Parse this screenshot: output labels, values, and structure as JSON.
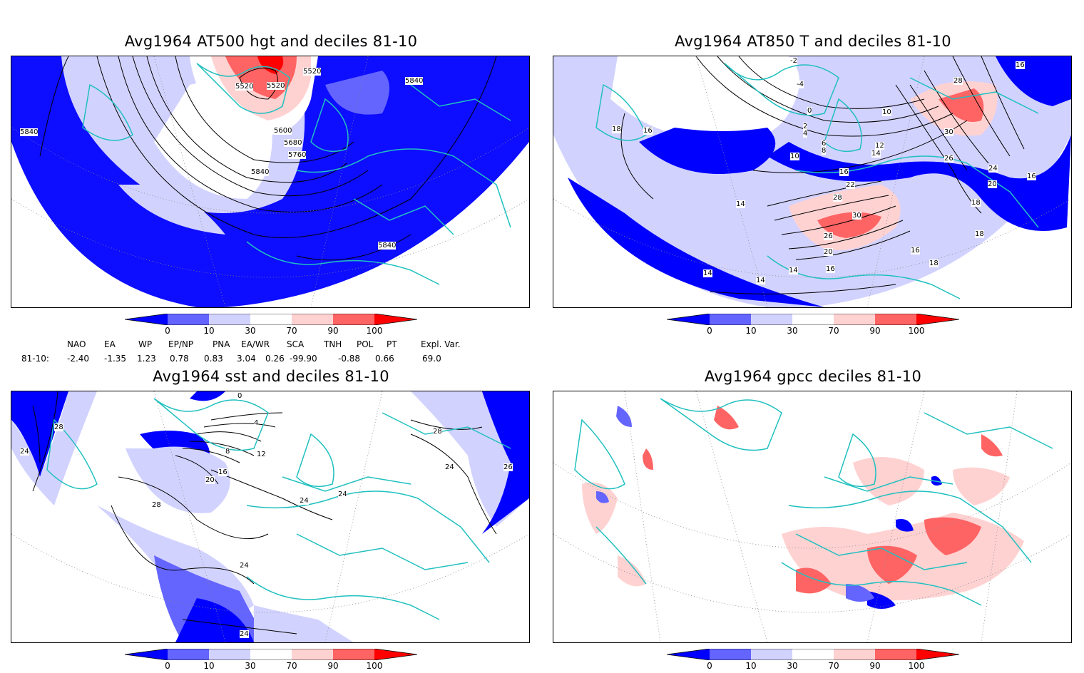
{
  "panels": [
    {
      "title": "Avg1964 AT500 hgt and deciles 81-10",
      "contour_labels": [
        "5520",
        "5520",
        "5520",
        "5600",
        "5680",
        "5760",
        "5840",
        "5840",
        "5840",
        "5840"
      ]
    },
    {
      "title": "Avg1964 AT850 T and deciles 81-10",
      "contour_labels": [
        "-2",
        "-4",
        "0",
        "2",
        "4",
        "6",
        "8",
        "10",
        "10",
        "12",
        "14",
        "14",
        "14",
        "14",
        "14",
        "16",
        "16",
        "16",
        "16",
        "16",
        "16",
        "18",
        "18",
        "18",
        "18",
        "20",
        "20",
        "22",
        "24",
        "26",
        "26",
        "28",
        "28",
        "30",
        "30"
      ]
    },
    {
      "title": "Avg1964 sst and deciles 81-10",
      "contour_labels": [
        "24",
        "28",
        "28",
        "28",
        "0",
        "4",
        "8",
        "12",
        "16",
        "20",
        "24",
        "24",
        "24",
        "24",
        "26",
        "24"
      ]
    },
    {
      "title": "Avg1964 gpcc deciles 81-10",
      "contour_labels": []
    }
  ],
  "colorbar": {
    "ticks": [
      "0",
      "10",
      "30",
      "70",
      "90",
      "100"
    ],
    "colors": [
      "#0000ff",
      "#6464ff",
      "#d2d2ff",
      "#ffffff",
      "#ffd2d2",
      "#ff6464",
      "#ff0000"
    ]
  },
  "map_colors": {
    "land_outline": "#20c0c0",
    "contour": "#000000",
    "grid": "#888888"
  },
  "index_table": {
    "headers": [
      "NAO",
      "EA",
      "WP",
      "EP/NP",
      "PNA",
      "EA/WR",
      "SCA",
      "TNH",
      "POL",
      "PT",
      "Expl. Var."
    ],
    "row_label": "81-10:",
    "values": [
      "-2.40",
      "-1.35",
      "1.23",
      "0.78",
      "0.83",
      "3.04",
      "0.26",
      "-99.90",
      "-0.88",
      "0.66",
      "69.0"
    ]
  }
}
